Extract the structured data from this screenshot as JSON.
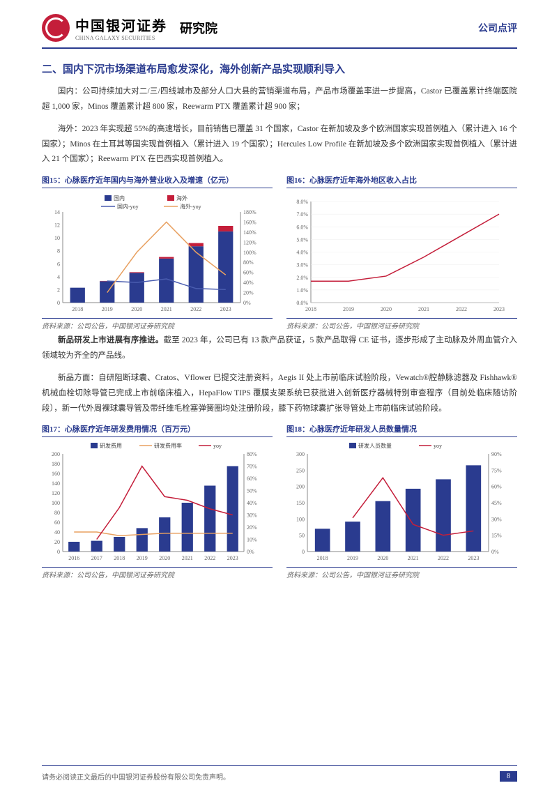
{
  "header": {
    "logo_cn": "中国银河证券",
    "logo_en": "CHINA GALAXY SECURITIES",
    "institute": "研究院",
    "doc_type": "公司点评"
  },
  "section_title": "二、国内下沉市场渠道布局愈发深化，海外创新产品实现顺利导入",
  "para1": "国内：公司持续加大对二/三/四线城市及部分人口大县的营销渠道布局，产品市场覆盖率进一步提高，Castor 已覆盖累计终端医院超 1,000 家，Minos 覆盖累计超 800 家，Reewarm PTX 覆盖累计超 900 家；",
  "para2": "海外：2023 年实现超 55%的高速增长，目前销售已覆盖 31 个国家，Castor 在新加坡及多个欧洲国家实现首例植入（累计进入 16 个国家）；Minos 在土耳其等国实现首例植入（累计进入 19 个国家）；Hercules Low Profile 在新加坡及多个欧洲国家实现首例植入（累计进入 21 个国家）；Reewarm PTX 在巴西实现首例植入。",
  "para3_bold": "新品研发上市进展有序推进。",
  "para3_rest": "截至 2023 年，公司已有 13 款产品获证，5 款产品取得 CE 证书，逐步形成了主动脉及外周血管介入领域较为齐全的产品线。",
  "para4": "新品方面：自研阻断球囊、Cratos、Vflower 已提交注册资料，Aegis II 处上市前临床试验阶段，Vewatch®腔静脉滤器及 Fishhawk®机械血栓切除导管已完成上市前临床植入，HepaFlow TIPS 覆膜支架系统已获批进入创新医疗器械特别审查程序（目前处临床随访阶段），新一代外周裸球囊导管及带纤维毛栓塞弹簧圈均处注册阶段，膝下药物球囊扩张导管处上市前临床试验阶段。",
  "chart15": {
    "title": "图15：心脉医疗近年国内与海外营业收入及增速（亿元）",
    "type": "bar_line_combo",
    "categories": [
      "2018",
      "2019",
      "2020",
      "2021",
      "2022",
      "2023"
    ],
    "domestic_values": [
      2.3,
      3.3,
      4.6,
      6.8,
      8.7,
      11.0
    ],
    "overseas_values": [
      0,
      0.05,
      0.1,
      0.25,
      0.5,
      0.85
    ],
    "domestic_yoy": [
      null,
      43,
      40,
      47,
      28,
      26
    ],
    "overseas_yoy": [
      null,
      20,
      100,
      160,
      100,
      55
    ],
    "legend": {
      "domestic": "国内",
      "overseas": "海外",
      "domestic_yoy": "国内-yoy",
      "overseas_yoy": "海外-yoy"
    },
    "colors": {
      "domestic": "#2a3b8f",
      "overseas": "#c41e3a",
      "domestic_yoy": "#4a5db0",
      "overseas_yoy": "#e8a060"
    },
    "ylim_left": [
      0,
      14
    ],
    "ytick_left": 2,
    "ylim_right": [
      0,
      180
    ],
    "ytick_right": 20,
    "background": "#ffffff"
  },
  "chart16": {
    "title": "图16：心脉医疗近年海外地区收入占比",
    "type": "line",
    "categories": [
      "2018",
      "2019",
      "2020",
      "2021",
      "2022",
      "2023"
    ],
    "values": [
      1.7,
      1.7,
      2.1,
      3.6,
      5.3,
      7.0
    ],
    "line_color": "#c41e3a",
    "ylim": [
      0,
      8
    ],
    "ytick": 1,
    "y_suffix": "%",
    "background": "#ffffff"
  },
  "chart17": {
    "title": "图17：心脉医疗近年研发费用情况（百万元）",
    "type": "bar_line_combo",
    "categories": [
      "2016",
      "2017",
      "2018",
      "2019",
      "2020",
      "2021",
      "2022",
      "2023"
    ],
    "rd_expense": [
      20,
      22,
      30,
      48,
      70,
      100,
      135,
      175
    ],
    "rd_rate": [
      16,
      16,
      13,
      14,
      15,
      15,
      15,
      15
    ],
    "yoy": [
      null,
      10,
      36,
      70,
      45,
      42,
      35,
      30
    ],
    "legend": {
      "rd": "研发费用",
      "rate": "研发费用率",
      "yoy": "yoy"
    },
    "colors": {
      "rd": "#2a3b8f",
      "rate": "#e8a060",
      "yoy": "#c41e3a"
    },
    "ylim_left": [
      0,
      200
    ],
    "ytick_left": 20,
    "ylim_right": [
      0,
      80
    ],
    "ytick_right": 10,
    "background": "#ffffff"
  },
  "chart18": {
    "title": "图18：心脉医疗近年研发人员数量情况",
    "type": "bar_line_combo",
    "categories": [
      "2018",
      "2019",
      "2020",
      "2021",
      "2022",
      "2023"
    ],
    "headcount": [
      70,
      92,
      155,
      193,
      222,
      265
    ],
    "yoy": [
      null,
      31,
      68,
      25,
      15,
      19
    ],
    "legend": {
      "hc": "研发人员数量",
      "yoy": "yoy"
    },
    "colors": {
      "hc": "#2a3b8f",
      "yoy": "#c41e3a"
    },
    "ylim_left": [
      0,
      300
    ],
    "ytick_left": 50,
    "ylim_right": [
      0,
      90
    ],
    "ytick_right": 15,
    "background": "#ffffff"
  },
  "source_text": "资料来源：公司公告，中国银河证券研究院",
  "footer": {
    "disclaimer": "请务必阅读正文最后的中国银河证券股份有限公司免责声明。",
    "page": "8"
  }
}
